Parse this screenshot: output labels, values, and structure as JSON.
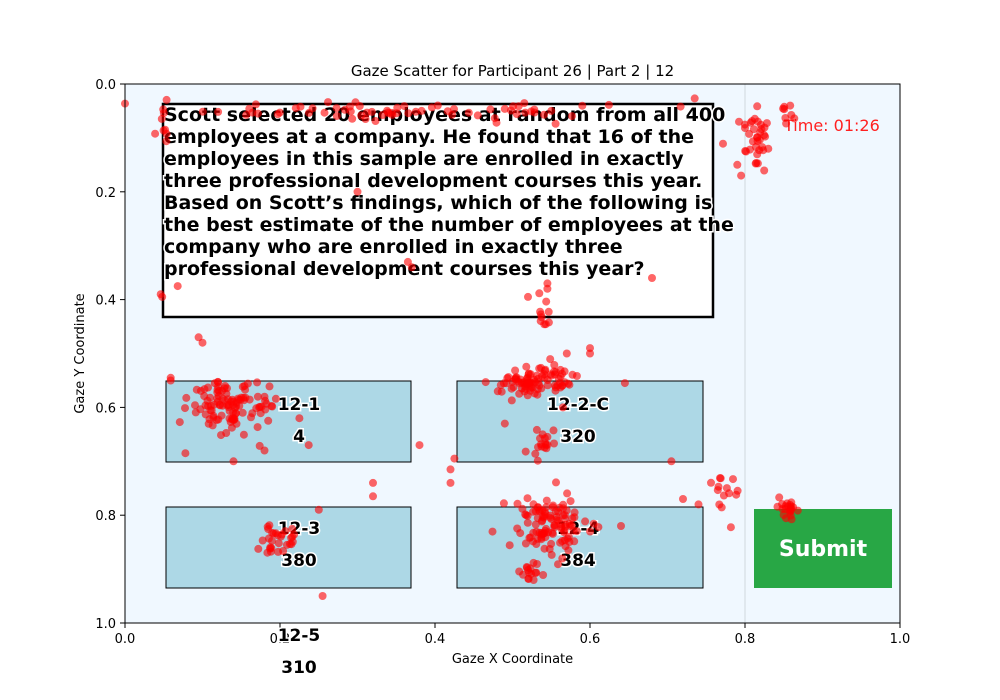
{
  "chart_data": {
    "type": "scatter",
    "title": "Gaze Scatter for Participant 26 | Part 2 | 12",
    "xlabel": "Gaze X Coordinate",
    "ylabel": "Gaze Y Coordinate",
    "xlim": [
      0.0,
      1.0
    ],
    "ylim": [
      1.0,
      0.0
    ],
    "y_inverted": true,
    "x_ticks": [
      "0.0",
      "0.2",
      "0.4",
      "0.6",
      "0.8",
      "1.0"
    ],
    "y_ticks": [
      "0.0",
      "0.2",
      "0.4",
      "0.6",
      "0.8",
      "1.0"
    ],
    "grid": false,
    "marker_color": "#ff0000",
    "clusters": [
      {
        "name": "timer",
        "cx": 0.815,
        "cy": 0.09,
        "sx": 0.012,
        "sy": 0.025,
        "n": 35
      },
      {
        "name": "timer-right",
        "cx": 0.855,
        "cy": 0.05,
        "sx": 0.006,
        "sy": 0.01,
        "n": 8
      },
      {
        "name": "option-12-1",
        "cx": 0.14,
        "cy": 0.6,
        "sx": 0.025,
        "sy": 0.025,
        "n": 110
      },
      {
        "name": "option-12-2-C",
        "cx": 0.53,
        "cy": 0.55,
        "sx": 0.025,
        "sy": 0.015,
        "n": 90
      },
      {
        "name": "option-12-2-C-lower",
        "cx": 0.54,
        "cy": 0.67,
        "sx": 0.007,
        "sy": 0.02,
        "n": 18
      },
      {
        "name": "option-12-3",
        "cx": 0.195,
        "cy": 0.84,
        "sx": 0.012,
        "sy": 0.018,
        "n": 30
      },
      {
        "name": "option-12-4",
        "cx": 0.55,
        "cy": 0.82,
        "sx": 0.025,
        "sy": 0.025,
        "n": 110
      },
      {
        "name": "option-12-4-lower",
        "cx": 0.525,
        "cy": 0.905,
        "sx": 0.012,
        "sy": 0.01,
        "n": 16
      },
      {
        "name": "submit",
        "cx": 0.855,
        "cy": 0.79,
        "sx": 0.007,
        "sy": 0.01,
        "n": 22
      },
      {
        "name": "right-gap",
        "cx": 0.775,
        "cy": 0.765,
        "sx": 0.01,
        "sy": 0.02,
        "n": 14
      },
      {
        "name": "question-top",
        "cx": 0.36,
        "cy": 0.05,
        "sx": 0.17,
        "sy": 0.008,
        "n": 70
      },
      {
        "name": "question-left",
        "cx": 0.05,
        "cy": 0.1,
        "sx": 0.005,
        "sy": 0.04,
        "n": 8
      },
      {
        "name": "center-column",
        "cx": 0.54,
        "cy": 0.43,
        "sx": 0.006,
        "sy": 0.015,
        "n": 10
      }
    ],
    "points": [
      [
        0.046,
        0.39
      ],
      [
        0.048,
        0.395
      ],
      [
        0.068,
        0.375
      ],
      [
        0.059,
        0.545
      ],
      [
        0.059,
        0.55
      ],
      [
        0.078,
        0.685
      ],
      [
        0.1,
        0.48
      ],
      [
        0.095,
        0.47
      ],
      [
        0.14,
        0.7
      ],
      [
        0.18,
        0.68
      ],
      [
        0.225,
        0.62
      ],
      [
        0.237,
        0.67
      ],
      [
        0.32,
        0.74
      ],
      [
        0.32,
        0.765
      ],
      [
        0.25,
        0.79
      ],
      [
        0.255,
        0.95
      ],
      [
        0.38,
        0.67
      ],
      [
        0.42,
        0.74
      ],
      [
        0.425,
        0.695
      ],
      [
        0.42,
        0.715
      ],
      [
        0.49,
        0.63
      ],
      [
        0.565,
        0.6
      ],
      [
        0.57,
        0.5
      ],
      [
        0.6,
        0.49
      ],
      [
        0.6,
        0.5
      ],
      [
        0.645,
        0.555
      ],
      [
        0.68,
        0.36
      ],
      [
        0.705,
        0.7
      ],
      [
        0.64,
        0.82
      ],
      [
        0.545,
        0.38
      ],
      [
        0.545,
        0.37
      ],
      [
        0.52,
        0.395
      ],
      [
        0.37,
        0.34
      ],
      [
        0.365,
        0.33
      ],
      [
        0.3,
        0.2
      ],
      [
        0.72,
        0.77
      ],
      [
        0.74,
        0.78
      ],
      [
        0.79,
        0.15
      ],
      [
        0.795,
        0.17
      ],
      [
        0.83,
        0.12
      ]
    ]
  },
  "stimulus": {
    "question_lines": [
      "Scott selected 20 employees at random from all 400",
      "employees at a company. He found that 16 of the",
      "employees in this sample are enrolled in exactly",
      "three professional development courses this year.",
      "Based on Scott’s findings, which of the following is",
      "the best estimate of the number of employees at the",
      "company who are enrolled in exactly three",
      "professional development courses this year?"
    ],
    "timer": "Time: 01:26",
    "options": [
      {
        "label": "12-1",
        "value": "4"
      },
      {
        "label": "12-2-C",
        "value": "320"
      },
      {
        "label": "12-3",
        "value": "380"
      },
      {
        "label": "12-4",
        "value": "384"
      },
      {
        "label": "12-5",
        "value": "310"
      }
    ],
    "submit_label": "Submit",
    "colors": {
      "plot_bg": "#f0f8ff",
      "option_fill": "#add8e6",
      "submit_fill": "#28a745",
      "timer": "#ff2020",
      "gaze": "#ff0000"
    }
  }
}
